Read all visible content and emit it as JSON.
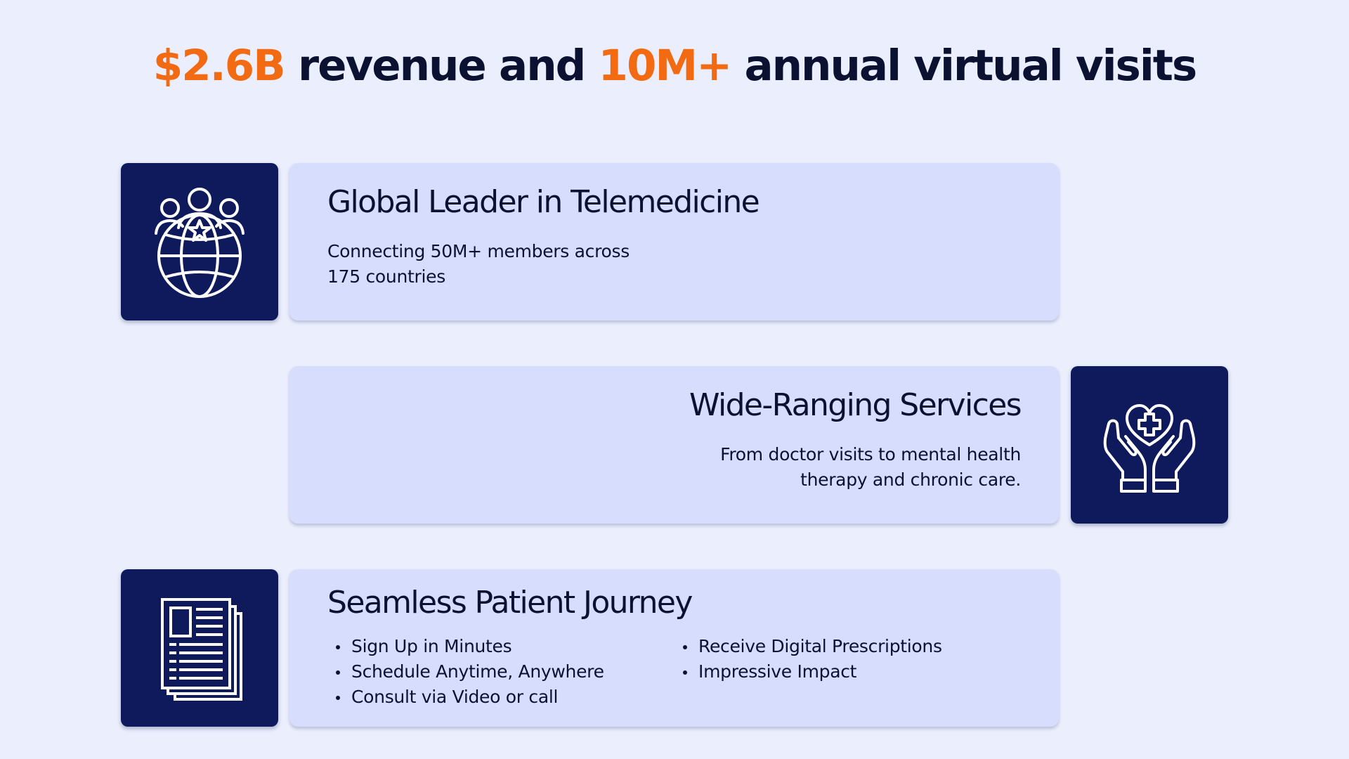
{
  "headline": {
    "part1": "$2.6B",
    "part2": " revenue and ",
    "part3": "10M+",
    "part4": " annual virtual visits"
  },
  "colors": {
    "accent": "#f26a12",
    "icon_bg": "#0e1a5c",
    "card_bg": "#d7ddfc",
    "page_bg": "#eaeefd",
    "text": "#0b1131"
  },
  "cards": [
    {
      "icon": "global-community-icon",
      "title": "Global Leader in Telemedicine",
      "desc_lines": [
        "Connecting 50M+ members across",
        "175 countries"
      ]
    },
    {
      "icon": "caring-hands-heart-icon",
      "title": "Wide-Ranging Services",
      "desc_lines": [
        "From doctor visits to mental health",
        "therapy and chronic care."
      ]
    },
    {
      "icon": "documents-icon",
      "title": "Seamless Patient Journey",
      "bullets_left": [
        "Sign Up in Minutes",
        "Schedule Anytime, Anywhere",
        "Consult via Video or call"
      ],
      "bullets_right": [
        "Receive Digital Prescriptions",
        "Impressive Impact"
      ]
    }
  ]
}
